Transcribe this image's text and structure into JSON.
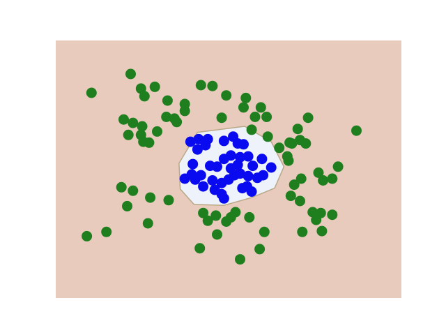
{
  "chart_data": {
    "type": "scatter",
    "title": "",
    "xlabel": "",
    "ylabel": "",
    "axes_visible": false,
    "grid": false,
    "legend": "none",
    "xlim": [
      -1.5,
      1.5
    ],
    "ylim": [
      -1.5,
      1.5
    ],
    "colors": {
      "outer_region": "#e8cbbc",
      "inner_region": "#eef2fa",
      "boundary": "#b8a888",
      "outer_points": "#1f7f1f",
      "inner_points": "#0a0af0"
    },
    "decision_boundary": [
      [
        -0.27,
        0.43
      ],
      [
        0.14,
        0.5
      ],
      [
        0.37,
        0.32
      ],
      [
        0.48,
        0.03
      ],
      [
        0.4,
        -0.22
      ],
      [
        0.2,
        -0.33
      ],
      [
        -0.04,
        -0.42
      ],
      [
        -0.3,
        -0.41
      ],
      [
        -0.42,
        -0.23
      ],
      [
        -0.43,
        0.07
      ]
    ],
    "series": [
      {
        "color": "#1f7f1f",
        "points": [
          [
            -1.19,
            0.89
          ],
          [
            -0.85,
            1.11
          ],
          [
            -0.76,
            0.94
          ],
          [
            -0.64,
            0.96
          ],
          [
            -0.53,
            0.8
          ],
          [
            -0.73,
            0.85
          ],
          [
            -0.83,
            0.54
          ],
          [
            -0.75,
            0.5
          ],
          [
            -0.91,
            0.58
          ],
          [
            -0.87,
            0.4
          ],
          [
            -0.76,
            0.4
          ],
          [
            -0.74,
            0.32
          ],
          [
            -0.69,
            0.31
          ],
          [
            -0.62,
            0.44
          ],
          [
            -0.54,
            0.61
          ],
          [
            -0.47,
            0.59
          ],
          [
            -0.45,
            0.55
          ],
          [
            -0.38,
            0.68
          ],
          [
            -0.38,
            0.76
          ],
          [
            -0.24,
            0.98
          ],
          [
            -0.14,
            0.97
          ],
          [
            -0.02,
            0.86
          ],
          [
            -0.06,
            0.6
          ],
          [
            0.13,
            0.72
          ],
          [
            0.15,
            0.83
          ],
          [
            0.28,
            0.72
          ],
          [
            0.23,
            0.61
          ],
          [
            0.33,
            0.61
          ],
          [
            0.2,
            0.46
          ],
          [
            0.34,
            0.38
          ],
          [
            0.44,
            0.25
          ],
          [
            0.51,
            0.15
          ],
          [
            0.53,
            0.31
          ],
          [
            0.6,
            0.47
          ],
          [
            0.62,
            0.34
          ],
          [
            0.67,
            0.3
          ],
          [
            0.55,
            0.3
          ],
          [
            0.52,
            0.1
          ],
          [
            0.69,
            0.6
          ],
          [
            1.11,
            0.45
          ],
          [
            0.95,
            0.03
          ],
          [
            0.9,
            -0.11
          ],
          [
            0.82,
            -0.13
          ],
          [
            0.78,
            -0.04
          ],
          [
            0.63,
            -0.11
          ],
          [
            0.57,
            -0.18
          ],
          [
            0.62,
            -0.37
          ],
          [
            0.54,
            -0.31
          ],
          [
            0.8,
            -0.51
          ],
          [
            0.9,
            -0.53
          ],
          [
            0.73,
            -0.5
          ],
          [
            0.76,
            -0.59
          ],
          [
            0.81,
            -0.72
          ],
          [
            0.64,
            -0.73
          ],
          [
            0.31,
            -0.73
          ],
          [
            0.18,
            -0.56
          ],
          [
            0.06,
            -0.5
          ],
          [
            0.02,
            -0.56
          ],
          [
            -0.11,
            -0.54
          ],
          [
            -0.18,
            -0.6
          ],
          [
            -0.02,
            -0.61
          ],
          [
            -0.22,
            -0.51
          ],
          [
            -0.1,
            -0.76
          ],
          [
            -0.25,
            -0.92
          ],
          [
            0.27,
            -0.93
          ],
          [
            0.1,
            -1.05
          ],
          [
            -0.93,
            -0.21
          ],
          [
            -0.83,
            -0.25
          ],
          [
            -0.68,
            -0.33
          ],
          [
            -0.52,
            -0.36
          ],
          [
            -0.88,
            -0.43
          ],
          [
            -0.7,
            -0.63
          ],
          [
            -1.06,
            -0.73
          ],
          [
            -1.23,
            -0.78
          ]
        ]
      },
      {
        "color": "#0a0af0",
        "points": [
          [
            -0.26,
            0.35
          ],
          [
            -0.18,
            0.35
          ],
          [
            -0.2,
            0.28
          ],
          [
            -0.04,
            0.33
          ],
          [
            0.04,
            0.38
          ],
          [
            0.08,
            0.3
          ],
          [
            0.13,
            0.29
          ],
          [
            0.17,
            0.15
          ],
          [
            0.1,
            0.14
          ],
          [
            0.08,
            0.05
          ],
          [
            0.02,
            0.01
          ],
          [
            -0.1,
            0.03
          ],
          [
            -0.16,
            0.04
          ],
          [
            -0.27,
            0.23
          ],
          [
            -0.33,
            0.32
          ],
          [
            -0.31,
            0.06
          ],
          [
            -0.32,
            -0.06
          ],
          [
            -0.38,
            -0.11
          ],
          [
            -0.29,
            -0.12
          ],
          [
            -0.24,
            -0.07
          ],
          [
            -0.14,
            -0.13
          ],
          [
            -0.06,
            -0.16
          ],
          [
            0.0,
            -0.12
          ],
          [
            0.05,
            -0.07
          ],
          [
            0.1,
            -0.05
          ],
          [
            0.17,
            -0.08
          ],
          [
            0.25,
            -0.1
          ],
          [
            0.3,
            -0.07
          ],
          [
            0.37,
            0.02
          ],
          [
            0.29,
            0.12
          ],
          [
            0.21,
            0.04
          ],
          [
            0.02,
            0.16
          ],
          [
            -0.04,
            0.12
          ],
          [
            0.12,
            -0.22
          ],
          [
            -0.06,
            -0.29
          ],
          [
            -0.04,
            -0.34
          ],
          [
            -0.12,
            -0.24
          ],
          [
            -0.22,
            -0.2
          ],
          [
            0.16,
            -0.2
          ],
          [
            0.2,
            -0.26
          ]
        ]
      }
    ]
  }
}
